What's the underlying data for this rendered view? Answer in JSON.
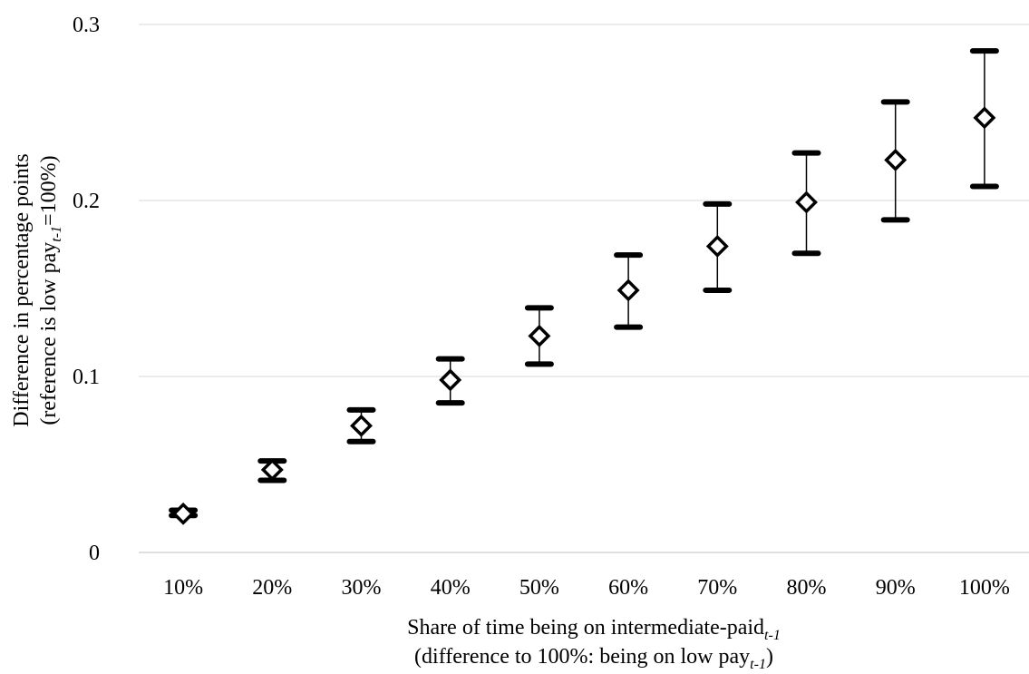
{
  "chart_data": {
    "type": "scatter",
    "categories": [
      "10%",
      "20%",
      "30%",
      "40%",
      "50%",
      "60%",
      "70%",
      "80%",
      "90%",
      "100%"
    ],
    "values": [
      0.022,
      0.047,
      0.072,
      0.098,
      0.123,
      0.149,
      0.174,
      0.199,
      0.223,
      0.247
    ],
    "ci_upper": [
      0.024,
      0.052,
      0.081,
      0.11,
      0.139,
      0.169,
      0.198,
      0.227,
      0.256,
      0.285
    ],
    "ci_lower": [
      0.021,
      0.041,
      0.063,
      0.085,
      0.107,
      0.128,
      0.149,
      0.17,
      0.189,
      0.208
    ],
    "ylim": [
      0,
      0.3
    ],
    "y_ticks": [
      "0",
      "0.1",
      "0.2",
      "0.3"
    ],
    "y_tick_values": [
      0,
      0.1,
      0.2,
      0.3
    ],
    "grid": true,
    "marker": "hollow-diamond",
    "xlabel": {
      "line1_main": "Share of time being on intermediate-paid",
      "line1_sub": "t-1",
      "line2_main": "(difference to 100%: being on low pay",
      "line2_sub": "t-1",
      "line2_end": ")"
    },
    "ylabel": {
      "line1": "Difference in percentage points",
      "line2_main": "(reference is low pay",
      "line2_sub": "t-1",
      "line2_end": "=100%)"
    }
  }
}
